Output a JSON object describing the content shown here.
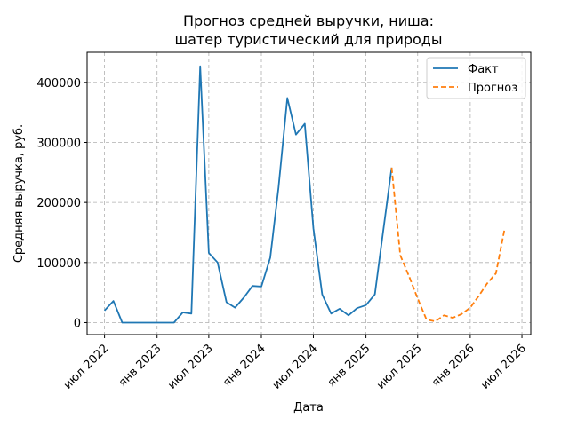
{
  "chart_data": {
    "type": "line",
    "title_lines": [
      "Прогноз средней выручки, ниша:",
      "шатер туристический для природы"
    ],
    "xlabel": "Дата",
    "ylabel": "Средняя выручка, руб.",
    "ylim": [
      -20000,
      450000
    ],
    "xlim": [
      "2022-05-01",
      "2026-08-01"
    ],
    "grid": true,
    "legend_position": "top-right",
    "y_ticks": [
      {
        "value": 0,
        "label": "0"
      },
      {
        "value": 100000,
        "label": "100000"
      },
      {
        "value": 200000,
        "label": "200000"
      },
      {
        "value": 300000,
        "label": "300000"
      },
      {
        "value": 400000,
        "label": "400000"
      }
    ],
    "x_ticks": [
      {
        "date": "2022-07-01",
        "label": "июл 2022"
      },
      {
        "date": "2023-01-01",
        "label": "янв 2023"
      },
      {
        "date": "2023-07-01",
        "label": "июл 2023"
      },
      {
        "date": "2024-01-01",
        "label": "янв 2024"
      },
      {
        "date": "2024-07-01",
        "label": "июл 2024"
      },
      {
        "date": "2025-01-01",
        "label": "янв 2025"
      },
      {
        "date": "2025-07-01",
        "label": "июл 2025"
      },
      {
        "date": "2026-01-01",
        "label": "янв 2026"
      },
      {
        "date": "2026-07-01",
        "label": "июл 2026"
      }
    ],
    "series": [
      {
        "name": "Факт",
        "color": "#1f77b4",
        "dash": "solid",
        "points": [
          [
            "2022-07-01",
            20000
          ],
          [
            "2022-08-01",
            36000
          ],
          [
            "2022-09-01",
            0
          ],
          [
            "2022-10-01",
            0
          ],
          [
            "2022-11-01",
            0
          ],
          [
            "2022-12-01",
            0
          ],
          [
            "2023-01-01",
            0
          ],
          [
            "2023-02-01",
            0
          ],
          [
            "2023-03-01",
            0
          ],
          [
            "2023-04-01",
            17000
          ],
          [
            "2023-05-01",
            15000
          ],
          [
            "2023-06-01",
            427000
          ],
          [
            "2023-07-01",
            116000
          ],
          [
            "2023-08-01",
            100000
          ],
          [
            "2023-09-01",
            34000
          ],
          [
            "2023-10-01",
            25000
          ],
          [
            "2023-11-01",
            42000
          ],
          [
            "2023-12-01",
            61000
          ],
          [
            "2024-01-01",
            60000
          ],
          [
            "2024-02-01",
            108000
          ],
          [
            "2024-03-01",
            225000
          ],
          [
            "2024-04-01",
            374000
          ],
          [
            "2024-05-01",
            313000
          ],
          [
            "2024-06-01",
            331000
          ],
          [
            "2024-07-01",
            157000
          ],
          [
            "2024-08-01",
            47000
          ],
          [
            "2024-09-01",
            15000
          ],
          [
            "2024-10-01",
            23000
          ],
          [
            "2024-11-01",
            12000
          ],
          [
            "2024-12-01",
            24000
          ],
          [
            "2025-01-01",
            29000
          ],
          [
            "2025-02-01",
            47000
          ],
          [
            "2025-03-01",
            148000
          ],
          [
            "2025-04-01",
            258000
          ]
        ]
      },
      {
        "name": "Прогноз",
        "color": "#ff7f0e",
        "dash": "dashed",
        "points": [
          [
            "2025-04-01",
            258000
          ],
          [
            "2025-05-01",
            112000
          ],
          [
            "2025-06-01",
            77000
          ],
          [
            "2025-07-01",
            40000
          ],
          [
            "2025-08-01",
            5000
          ],
          [
            "2025-09-01",
            2000
          ],
          [
            "2025-10-01",
            12000
          ],
          [
            "2025-11-01",
            8000
          ],
          [
            "2025-12-01",
            14000
          ],
          [
            "2026-01-01",
            25000
          ],
          [
            "2026-02-01",
            45000
          ],
          [
            "2026-03-01",
            65000
          ],
          [
            "2026-04-01",
            82000
          ],
          [
            "2026-05-01",
            155000
          ]
        ]
      }
    ]
  }
}
